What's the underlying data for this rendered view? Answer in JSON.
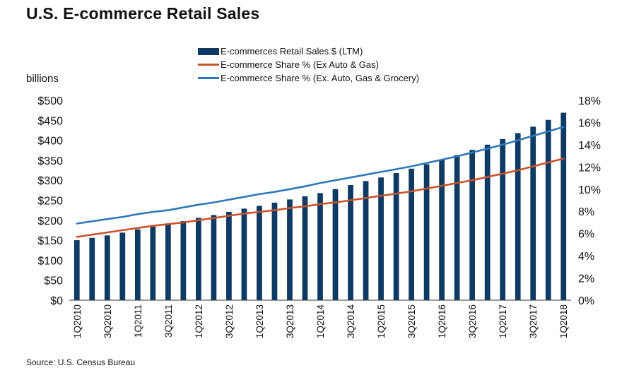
{
  "title": "U.S. E-commerce Retail Sales",
  "source": "Source: U.S. Census Bureau",
  "colors": {
    "bar": "#0f3a64",
    "line_auto_gas": "#c8532b",
    "line_grocery": "#2f78b8",
    "axis": "#333333"
  },
  "chart_data": {
    "type": "bar",
    "title": "U.S. E-commerce Retail Sales",
    "ylabel": "billions",
    "y2label": "",
    "ylim": [
      0,
      500
    ],
    "y2lim": [
      0,
      18
    ],
    "yticks": [
      "$0",
      "$50",
      "$100",
      "$150",
      "$200",
      "$250",
      "$300",
      "$350",
      "$400",
      "$450",
      "$500"
    ],
    "y2ticks": [
      "0%",
      "2%",
      "4%",
      "6%",
      "8%",
      "10%",
      "12%",
      "14%",
      "16%",
      "18%"
    ],
    "grid": false,
    "legend_position": "top-center",
    "categories": [
      "1Q2010",
      "2Q2010",
      "3Q2010",
      "4Q2010",
      "1Q2011",
      "2Q2011",
      "3Q2011",
      "4Q2011",
      "1Q2012",
      "2Q2012",
      "3Q2012",
      "4Q2012",
      "1Q2013",
      "2Q2013",
      "3Q2013",
      "4Q2013",
      "1Q2014",
      "2Q2014",
      "3Q2014",
      "4Q2014",
      "1Q2015",
      "2Q2015",
      "3Q2015",
      "4Q2015",
      "1Q2016",
      "2Q2016",
      "3Q2016",
      "4Q2016",
      "1Q2017",
      "2Q2017",
      "3Q2017",
      "4Q2017",
      "1Q2018"
    ],
    "xtick_labels": [
      "1Q2010",
      "3Q2010",
      "1Q2011",
      "3Q2011",
      "1Q2012",
      "3Q2012",
      "1Q2013",
      "3Q2013",
      "1Q2014",
      "3Q2014",
      "1Q2015",
      "3Q2015",
      "1Q2016",
      "3Q2016",
      "1Q2017",
      "3Q2017",
      "1Q2018"
    ],
    "series": [
      {
        "name": "E-commerces Retail Sales $ (LTM)",
        "type": "bar",
        "axis": "left",
        "values": [
          150,
          156,
          162,
          169,
          177,
          184,
          190,
          198,
          206,
          213,
          221,
          229,
          236,
          244,
          252,
          260,
          268,
          278,
          288,
          298,
          307,
          318,
          329,
          340,
          352,
          363,
          376,
          389,
          403,
          418,
          434,
          451,
          469
        ]
      },
      {
        "name": "E-commerce Share % (Ex Auto & Gas)",
        "type": "line",
        "axis": "right",
        "values": [
          5.7,
          5.9,
          6.1,
          6.3,
          6.5,
          6.7,
          6.85,
          7.0,
          7.2,
          7.4,
          7.6,
          7.8,
          7.95,
          8.1,
          8.3,
          8.45,
          8.65,
          8.8,
          9.0,
          9.2,
          9.4,
          9.6,
          9.8,
          10.05,
          10.3,
          10.55,
          10.8,
          11.1,
          11.4,
          11.7,
          12.05,
          12.4,
          12.75
        ]
      },
      {
        "name": "E-commerce Share % (Ex. Auto, Gas & Grocery)",
        "type": "line",
        "axis": "right",
        "values": [
          6.9,
          7.1,
          7.3,
          7.5,
          7.75,
          7.95,
          8.1,
          8.35,
          8.6,
          8.8,
          9.05,
          9.3,
          9.55,
          9.75,
          10.0,
          10.25,
          10.55,
          10.8,
          11.05,
          11.3,
          11.55,
          11.8,
          12.05,
          12.35,
          12.65,
          12.95,
          13.3,
          13.65,
          14.0,
          14.4,
          14.8,
          15.2,
          15.6
        ]
      }
    ]
  }
}
